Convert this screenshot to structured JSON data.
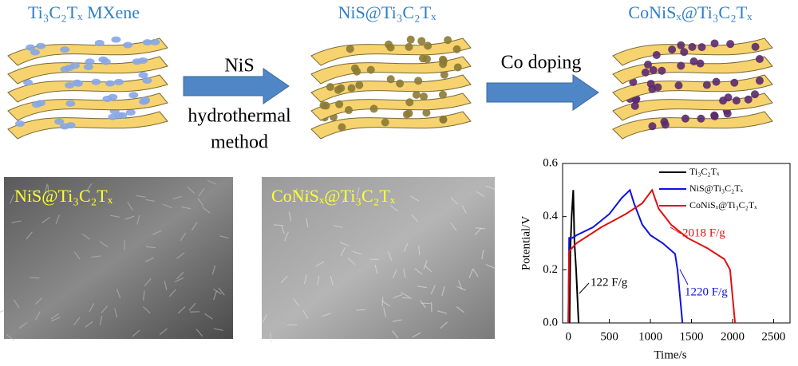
{
  "stages": [
    {
      "label": "Ti₃C₂Tₓ MXene"
    },
    {
      "label": "NiS@Ti₃C₂Tₓ"
    },
    {
      "label": "CoNiSₓ@Ti₃C₂Tₓ"
    }
  ],
  "steps": [
    {
      "label": "NiS",
      "note": [
        "hydrothermal",
        "method"
      ]
    },
    {
      "label": "Co doping"
    }
  ],
  "images": [
    {
      "label": "NiS@Ti₃C₂Tₓ"
    },
    {
      "label": "CoNiSₓ@Ti₃C₂Tₓ"
    }
  ],
  "chart_data": {
    "type": "line",
    "xlabel": "Time/s",
    "ylabel": "Potential/V",
    "xlim": [
      -70,
      2700
    ],
    "xticks": [
      0,
      500,
      1000,
      1500,
      2000,
      2500
    ],
    "ylim": [
      0,
      0.6
    ],
    "yticks": [
      {
        "value": 0,
        "label": "0.0"
      },
      {
        "value": 0.2,
        "label": "0.2"
      },
      {
        "value": 0.4,
        "label": "0.4"
      },
      {
        "value": 0.6,
        "label": "0.6"
      }
    ],
    "legend": "upper right",
    "series": [
      {
        "name": "Ti₃C₂Tₓ",
        "color": "#000000",
        "x": [
          15,
          25,
          40,
          60,
          75,
          95,
          110,
          125
        ],
        "values": [
          0,
          0.28,
          0.4,
          0.5,
          0.3,
          0.2,
          0.1,
          0
        ]
      },
      {
        "name": "NiS@Ti₃C₂Tₓ",
        "color": "#1010e0",
        "x": [
          0,
          10,
          50,
          100,
          300,
          500,
          650,
          750,
          800,
          900,
          1000,
          1150,
          1300,
          1330,
          1360,
          1390
        ],
        "values": [
          0,
          0.32,
          0.32,
          0.33,
          0.36,
          0.41,
          0.47,
          0.5,
          0.45,
          0.37,
          0.33,
          0.3,
          0.26,
          0.2,
          0.1,
          0
        ]
      },
      {
        "name": "CoNiSₓ@Ti₃C₂Tₓ",
        "color": "#e01010",
        "x": [
          0,
          10,
          100,
          400,
          700,
          900,
          1020,
          1100,
          1250,
          1450,
          1700,
          1900,
          1970,
          2000,
          2030
        ],
        "values": [
          0,
          0.27,
          0.3,
          0.36,
          0.41,
          0.45,
          0.5,
          0.43,
          0.37,
          0.32,
          0.28,
          0.24,
          0.2,
          0.1,
          0
        ]
      }
    ],
    "annotations": [
      {
        "text": "122 F/g",
        "color": "#000000"
      },
      {
        "text": "1220 F/g",
        "color": "#1010e0"
      },
      {
        "text": "2018 F/g",
        "color": "#e01010"
      }
    ]
  }
}
